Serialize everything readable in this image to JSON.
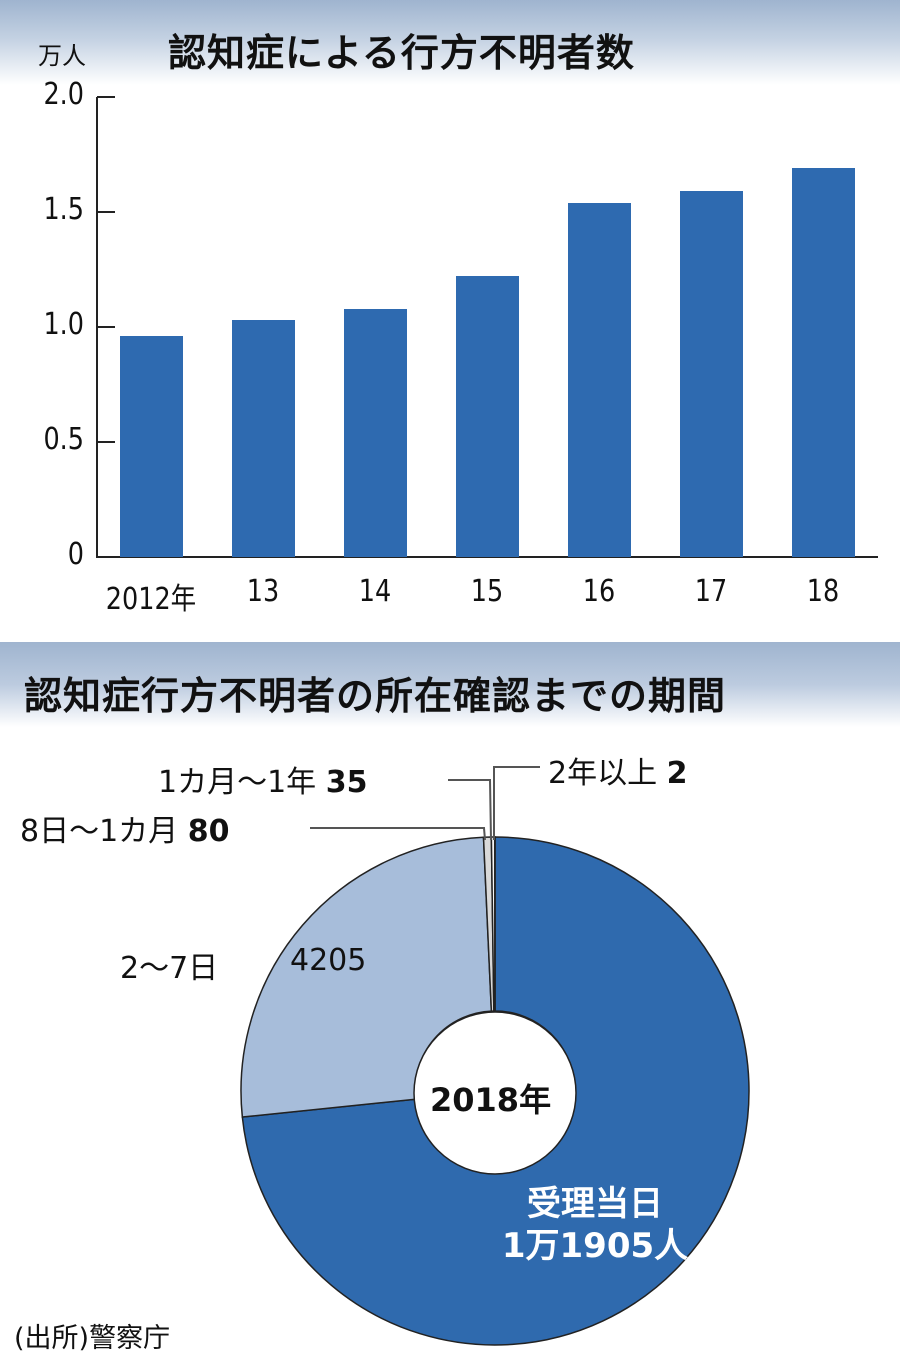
{
  "chart_data": [
    {
      "type": "bar",
      "title": "認知症による行方不明者数",
      "ylabel": "万人",
      "xlabel": "",
      "ylim": [
        0,
        2.0
      ],
      "yticks": [
        "0",
        "0.5",
        "1.0",
        "1.5",
        "2.0"
      ],
      "categories": [
        "2012年",
        "13",
        "14",
        "15",
        "16",
        "17",
        "18"
      ],
      "values": [
        0.96,
        1.03,
        1.08,
        1.22,
        1.54,
        1.59,
        1.69
      ],
      "grid": false,
      "color": "#2e6ab0"
    },
    {
      "type": "pie",
      "subtype": "donut",
      "title": "認知症行方不明者の所在確認までの期間",
      "center_label": "2018年",
      "slices": [
        {
          "label": "受理当日",
          "value": 11905,
          "display": "1万1905人",
          "color": "#2f6aae"
        },
        {
          "label": "2～7日",
          "value": 4205,
          "display": "4205",
          "color": "#a7bdda"
        },
        {
          "label": "8日～1カ月",
          "value": 80,
          "display": "80",
          "color": "#d9d9d9"
        },
        {
          "label": "1カ月～1年",
          "value": 35,
          "display": "35",
          "color": "#f4f4f4"
        },
        {
          "label": "2年以上",
          "value": 2,
          "display": "2",
          "color": "#bbbbbb"
        }
      ]
    }
  ],
  "bar_chart": {
    "title": "認知症による行方不明者数",
    "unit": "万人",
    "yticks": [
      "2.0",
      "1.5",
      "1.0",
      "0.5",
      "0"
    ],
    "xticks": [
      "2012年",
      "13",
      "14",
      "15",
      "16",
      "17",
      "18"
    ]
  },
  "donut_chart": {
    "title": "認知症行方不明者の所在確認までの期間",
    "center_label": "2018年",
    "labels": {
      "same_day_name": "受理当日",
      "same_day_value": "1万1905人",
      "days_2_7_name": "2～7日",
      "days_2_7_value": "4205",
      "days_8_month_name": "8日～1カ月",
      "days_8_month_value": "80",
      "month_year_name": "1カ月～1年",
      "month_year_value": "35",
      "over_2y_name": "2年以上",
      "over_2y_value": "2"
    }
  },
  "source": "(出所)警察庁"
}
